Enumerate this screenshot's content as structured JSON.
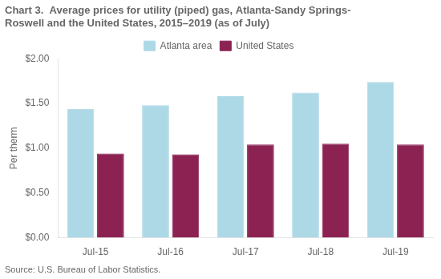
{
  "chart_data": {
    "type": "bar",
    "title": [
      "Chart 3.  Average prices for utility (piped) gas, Atlanta-Sandy Springs-",
      "Roswell and the United States, 2015–2019 (as of July)"
    ],
    "ylabel": "Per therm",
    "source": "Source: U.S. Bureau of Labor Statistics.",
    "categories": [
      "Jul-15",
      "Jul-16",
      "Jul-17",
      "Jul-18",
      "Jul-19"
    ],
    "series": [
      {
        "name": "Atlanta area",
        "color": "#add8e6",
        "values": [
          1.44,
          1.48,
          1.58,
          1.62,
          1.74
        ]
      },
      {
        "name": "United States",
        "color": "#8B2252",
        "values": [
          0.94,
          0.93,
          1.04,
          1.05,
          1.04
        ]
      }
    ],
    "ylim": [
      0.0,
      2.0
    ],
    "yticks": [
      {
        "value": 0.0,
        "label": "$0.00"
      },
      {
        "value": 0.5,
        "label": "$0.50"
      },
      {
        "value": 1.0,
        "label": "$1.00"
      },
      {
        "value": 1.5,
        "label": "$1.50"
      },
      {
        "value": 2.0,
        "label": "$2.00"
      }
    ],
    "legend": "top",
    "grid": false
  }
}
